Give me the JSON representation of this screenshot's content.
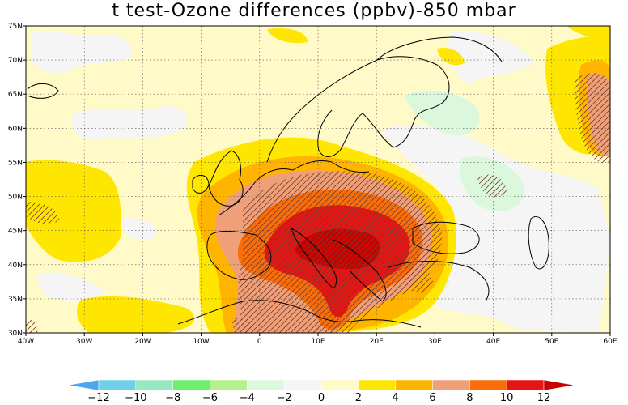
{
  "title": "t test-Ozone differences (ppbv)-850 mbar",
  "map": {
    "lon_range": [
      -40,
      60
    ],
    "lat_range": [
      30,
      75
    ],
    "lon_ticks": [
      {
        "value": -40,
        "label": "40W"
      },
      {
        "value": -30,
        "label": "30W"
      },
      {
        "value": -20,
        "label": "20W"
      },
      {
        "value": -10,
        "label": "10W"
      },
      {
        "value": 0,
        "label": "0"
      },
      {
        "value": 10,
        "label": "10E"
      },
      {
        "value": 20,
        "label": "20E"
      },
      {
        "value": 30,
        "label": "30E"
      },
      {
        "value": 40,
        "label": "40E"
      },
      {
        "value": 50,
        "label": "50E"
      },
      {
        "value": 60,
        "label": "60E"
      }
    ],
    "lat_ticks": [
      {
        "value": 75,
        "label": "75N"
      },
      {
        "value": 70,
        "label": "70N"
      },
      {
        "value": 65,
        "label": "65N"
      },
      {
        "value": 60,
        "label": "60N"
      },
      {
        "value": 55,
        "label": "55N"
      },
      {
        "value": 50,
        "label": "50N"
      },
      {
        "value": 45,
        "label": "45N"
      },
      {
        "value": 40,
        "label": "40N"
      },
      {
        "value": 35,
        "label": "35N"
      },
      {
        "value": 30,
        "label": "30N"
      }
    ],
    "grid": "dotted"
  },
  "colorbar": {
    "labels": [
      "−12",
      "−10",
      "−8",
      "−6",
      "−4",
      "−2",
      "0",
      "2",
      "4",
      "6",
      "8",
      "10",
      "12"
    ],
    "colors": [
      "#4ea6f0",
      "#6fd0e8",
      "#95e8c0",
      "#6ef06e",
      "#b4f08c",
      "#dcf8dc",
      "#f5f5f5",
      "#fffac8",
      "#ffe600",
      "#ffb400",
      "#f0a078",
      "#fa6e0a",
      "#e61414",
      "#c80000"
    ],
    "units": "ppbv"
  }
}
